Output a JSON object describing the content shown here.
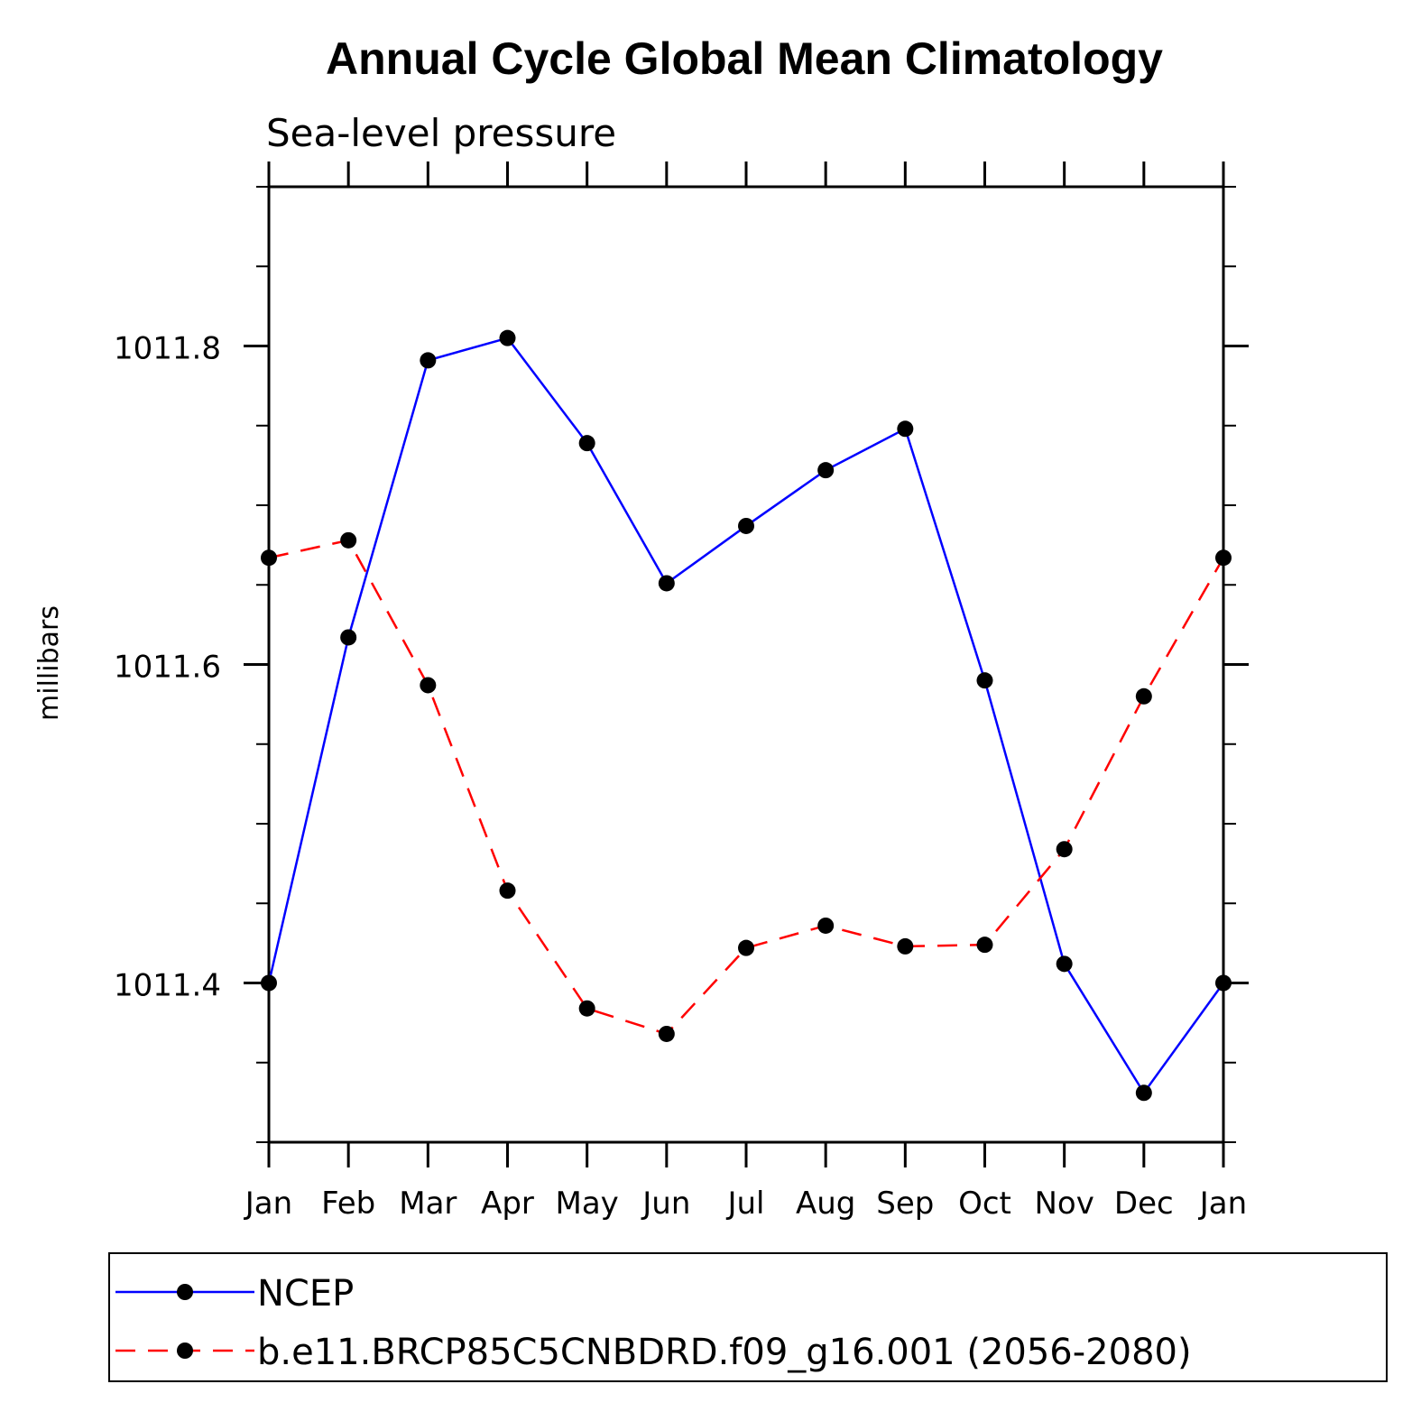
{
  "chart_data": {
    "type": "line",
    "title": "Annual Cycle Global Mean Climatology",
    "subtitle": "Sea-level pressure",
    "ylabel": "millibars",
    "xlabel": "",
    "categories": [
      "Jan",
      "Feb",
      "Mar",
      "Apr",
      "May",
      "Jun",
      "Jul",
      "Aug",
      "Sep",
      "Oct",
      "Nov",
      "Dec",
      "Jan"
    ],
    "ylim": [
      1011.3,
      1011.9
    ],
    "yticks": [
      1011.4,
      1011.6,
      1011.8
    ],
    "ytick_labels": [
      "1011.4",
      "1011.6",
      "1011.8"
    ],
    "y_minor_step": 0.05,
    "grid": false,
    "legend_position": "bottom",
    "series": [
      {
        "name": "NCEP",
        "color": "#0000ff",
        "dash": "solid",
        "values": [
          1011.4,
          1011.617,
          1011.791,
          1011.805,
          1011.739,
          1011.651,
          1011.687,
          1011.722,
          1011.748,
          1011.59,
          1011.412,
          1011.331,
          1011.4
        ]
      },
      {
        "name": "b.e11.BRCP85C5CNBDRD.f09_g16.001 (2056-2080)",
        "color": "#ff0000",
        "dash": "dashed",
        "values": [
          1011.667,
          1011.678,
          1011.587,
          1011.458,
          1011.384,
          1011.368,
          1011.422,
          1011.436,
          1011.423,
          1011.424,
          1011.484,
          1011.58,
          1011.667
        ]
      }
    ]
  }
}
